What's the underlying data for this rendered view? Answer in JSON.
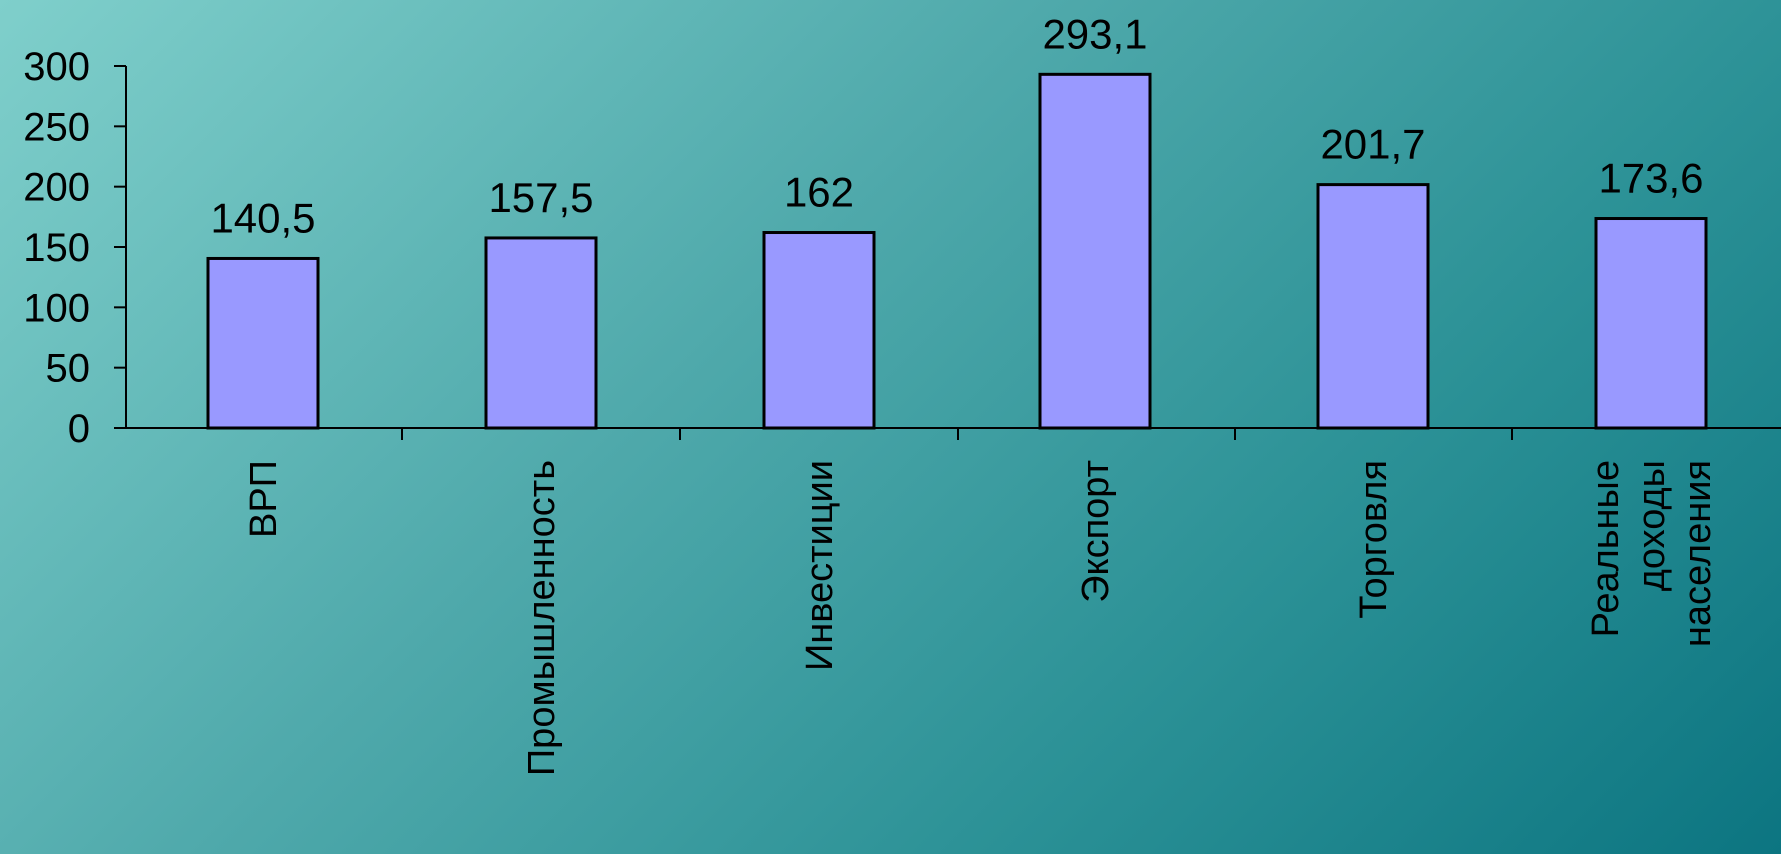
{
  "chart_data": {
    "type": "bar",
    "categories": [
      "ВРП",
      "Промышленность",
      "Инвестиции",
      "Экспорт",
      "Торговля",
      "Реальные доходы населения"
    ],
    "category_lines": [
      [
        "ВРП"
      ],
      [
        "Промышленность"
      ],
      [
        "Инвестиции"
      ],
      [
        "Экспорт"
      ],
      [
        "Торговля"
      ],
      [
        "Реальные",
        "доходы",
        "населения"
      ]
    ],
    "values": [
      140.5,
      157.5,
      162,
      293.1,
      201.7,
      173.6
    ],
    "value_labels": [
      "140,5",
      "157,5",
      "162",
      "293,1",
      "201,7",
      "173,6"
    ],
    "ylim": [
      0,
      300
    ],
    "yticks": [
      0,
      50,
      100,
      150,
      200,
      250,
      300
    ],
    "ytick_labels": [
      "0",
      "50",
      "100",
      "150",
      "200",
      "250",
      "300"
    ],
    "bar_color": "#9999ff",
    "grid": false,
    "legend": "none"
  }
}
